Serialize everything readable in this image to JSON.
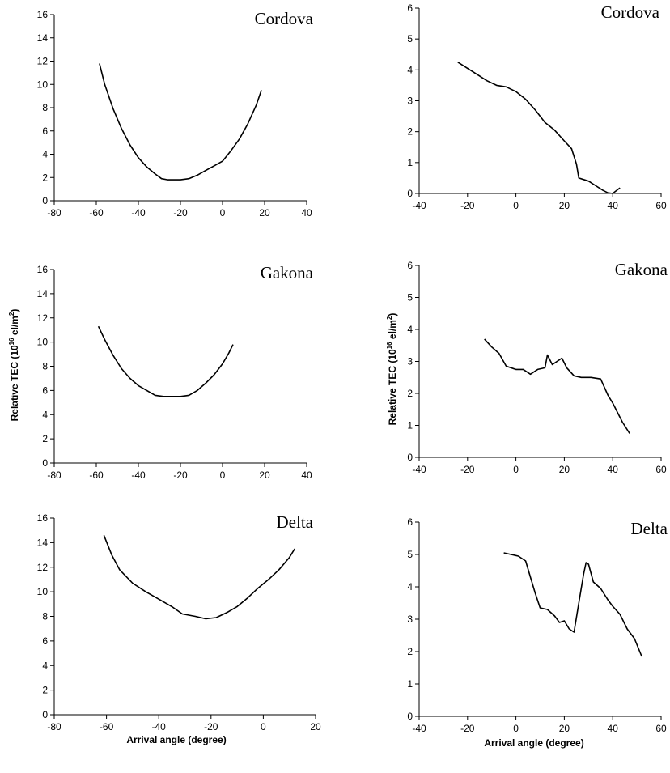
{
  "figure": {
    "ylabel": "Relative TEC (10",
    "ylabel_sup": "16",
    "ylabel_unit": " el/m",
    "ylabel_unit_sup": "2",
    "ylabel_close": ")",
    "xlabel": "Arrival angle (degree)"
  },
  "chart_data": [
    {
      "type": "line",
      "label": "Cordova",
      "row": 0,
      "col": 0,
      "xlim": [
        -80,
        40
      ],
      "ylim": [
        0,
        16
      ],
      "xticks": [
        -80,
        -60,
        -40,
        -20,
        0,
        20,
        40
      ],
      "yticks": [
        0,
        2,
        4,
        6,
        8,
        10,
        12,
        14,
        16
      ],
      "series": [
        {
          "x": [
            -58.5,
            -56,
            -52,
            -48,
            -44,
            -40,
            -36,
            -32,
            -29,
            -26,
            -23,
            -20,
            -16,
            -12,
            -8,
            -4,
            0,
            4,
            8,
            12,
            16,
            18.5
          ],
          "y": [
            11.8,
            10,
            7.9,
            6.2,
            4.8,
            3.7,
            2.9,
            2.3,
            1.9,
            1.8,
            1.8,
            1.8,
            1.9,
            2.2,
            2.6,
            3.0,
            3.4,
            4.3,
            5.3,
            6.6,
            8.2,
            9.5
          ]
        }
      ]
    },
    {
      "type": "line",
      "label": "Cordova",
      "row": 0,
      "col": 1,
      "xlim": [
        -40,
        60
      ],
      "ylim": [
        0,
        6
      ],
      "xticks": [
        -40,
        -20,
        0,
        20,
        40,
        60
      ],
      "yticks": [
        0,
        1,
        2,
        3,
        4,
        5,
        6
      ],
      "series": [
        {
          "x": [
            -24,
            -20,
            -16,
            -12,
            -8,
            -4,
            0,
            4,
            8,
            12,
            16,
            20,
            23,
            25,
            26,
            28,
            30,
            33,
            36,
            38,
            40,
            42,
            43
          ],
          "y": [
            4.25,
            4.05,
            3.85,
            3.65,
            3.5,
            3.45,
            3.3,
            3.05,
            2.7,
            2.3,
            2.05,
            1.7,
            1.45,
            0.95,
            0.5,
            0.45,
            0.4,
            0.25,
            0.1,
            0.02,
            0.0,
            0.12,
            0.18
          ]
        }
      ]
    },
    {
      "type": "line",
      "label": "Gakona",
      "row": 1,
      "col": 0,
      "xlim": [
        -80,
        40
      ],
      "ylim": [
        0,
        16
      ],
      "xticks": [
        -80,
        -60,
        -40,
        -20,
        0,
        20,
        40
      ],
      "yticks": [
        0,
        2,
        4,
        6,
        8,
        10,
        12,
        14,
        16
      ],
      "series": [
        {
          "x": [
            -59,
            -56,
            -52,
            -48,
            -44,
            -40,
            -36,
            -32,
            -28,
            -24,
            -20,
            -16,
            -12,
            -8,
            -4,
            0,
            3,
            5
          ],
          "y": [
            11.3,
            10.2,
            8.9,
            7.8,
            7.0,
            6.4,
            6.0,
            5.6,
            5.5,
            5.5,
            5.5,
            5.6,
            6.0,
            6.6,
            7.3,
            8.2,
            9.1,
            9.8
          ]
        }
      ]
    },
    {
      "type": "line",
      "label": "Gakona",
      "row": 1,
      "col": 1,
      "xlim": [
        -40,
        60
      ],
      "ylim": [
        0,
        6
      ],
      "xticks": [
        -40,
        -20,
        0,
        20,
        40,
        60
      ],
      "yticks": [
        0,
        1,
        2,
        3,
        4,
        5,
        6
      ],
      "series": [
        {
          "x": [
            -13,
            -10,
            -7,
            -4,
            0,
            3,
            6,
            9,
            12,
            13,
            15,
            17,
            19,
            21,
            24,
            27,
            31,
            35,
            38,
            40,
            44,
            47
          ],
          "y": [
            3.7,
            3.45,
            3.25,
            2.85,
            2.75,
            2.75,
            2.6,
            2.75,
            2.8,
            3.2,
            2.9,
            3.0,
            3.1,
            2.8,
            2.55,
            2.5,
            2.5,
            2.45,
            1.95,
            1.7,
            1.1,
            0.75
          ]
        }
      ]
    },
    {
      "type": "line",
      "label": "Delta",
      "row": 2,
      "col": 0,
      "xlim": [
        -80,
        20
      ],
      "ylim": [
        0,
        16
      ],
      "xticks": [
        -80,
        -60,
        -40,
        -20,
        0,
        20
      ],
      "yticks": [
        0,
        2,
        4,
        6,
        8,
        10,
        12,
        14,
        16
      ],
      "series": [
        {
          "x": [
            -61,
            -58,
            -55,
            -50,
            -45,
            -40,
            -35,
            -31,
            -26,
            -22,
            -18,
            -14,
            -10,
            -6,
            -2,
            2,
            6,
            10,
            12
          ],
          "y": [
            14.6,
            13.0,
            11.8,
            10.7,
            10.0,
            9.4,
            8.8,
            8.2,
            8.0,
            7.8,
            7.9,
            8.3,
            8.8,
            9.5,
            10.3,
            11.0,
            11.8,
            12.8,
            13.5
          ]
        }
      ]
    },
    {
      "type": "line",
      "label": "Delta",
      "row": 2,
      "col": 1,
      "xlim": [
        -40,
        60
      ],
      "ylim": [
        0,
        6
      ],
      "xticks": [
        -40,
        -20,
        0,
        20,
        40,
        60
      ],
      "yticks": [
        0,
        1,
        2,
        3,
        4,
        5,
        6
      ],
      "series": [
        {
          "x": [
            -5,
            -2,
            1,
            4,
            6,
            8,
            10,
            13,
            16,
            18,
            20,
            22,
            24,
            26,
            28,
            29,
            30,
            32,
            35,
            38,
            40,
            43,
            46,
            49,
            52
          ],
          "y": [
            5.05,
            5.0,
            4.95,
            4.8,
            4.3,
            3.8,
            3.35,
            3.3,
            3.1,
            2.9,
            2.95,
            2.7,
            2.6,
            3.5,
            4.4,
            4.75,
            4.7,
            4.15,
            3.95,
            3.6,
            3.4,
            3.15,
            2.7,
            2.4,
            1.85
          ]
        }
      ]
    }
  ]
}
